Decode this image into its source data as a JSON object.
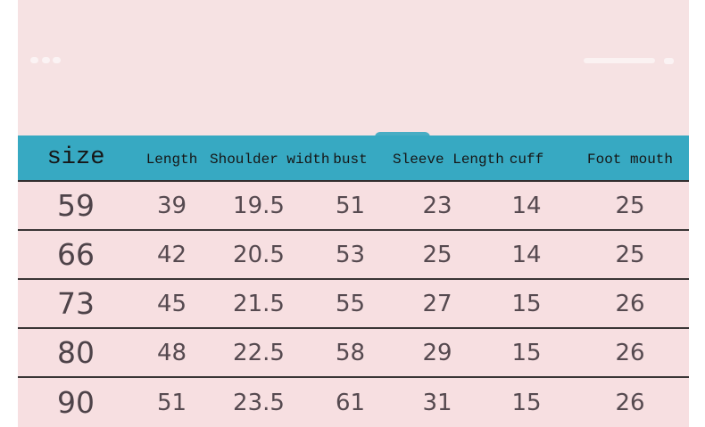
{
  "chart_data": {
    "type": "table",
    "columns": [
      "size",
      "Length",
      "Shoulder width",
      "bust",
      "Sleeve Length",
      "cuff",
      "Foot mouth"
    ],
    "rows": [
      [
        59,
        39,
        19.5,
        51,
        23,
        14,
        25
      ],
      [
        66,
        42,
        20.5,
        53,
        25,
        14,
        25
      ],
      [
        73,
        45,
        21.5,
        55,
        27,
        15,
        26
      ],
      [
        80,
        48,
        22.5,
        58,
        29,
        15,
        26
      ],
      [
        90,
        51,
        23.5,
        61,
        31,
        15,
        26
      ]
    ],
    "layout": {
      "header_position": "top",
      "grid": "horizontal-dividers-only",
      "first_column_emphasized": true
    }
  },
  "colors": {
    "header_bg": "#37a9c2",
    "header_text": "#161616",
    "row_bg": "#f7dfe1",
    "panel_bg": "#f6e2e3",
    "page_bg": "#ffffff",
    "divider": "#3a3535",
    "data_text": "#564a50"
  },
  "decor": {
    "left_icon": "three-faded-dots-icon",
    "right_icon": "faded-slider-bar-icon",
    "header_top_icon": "faded-tab-bump"
  }
}
